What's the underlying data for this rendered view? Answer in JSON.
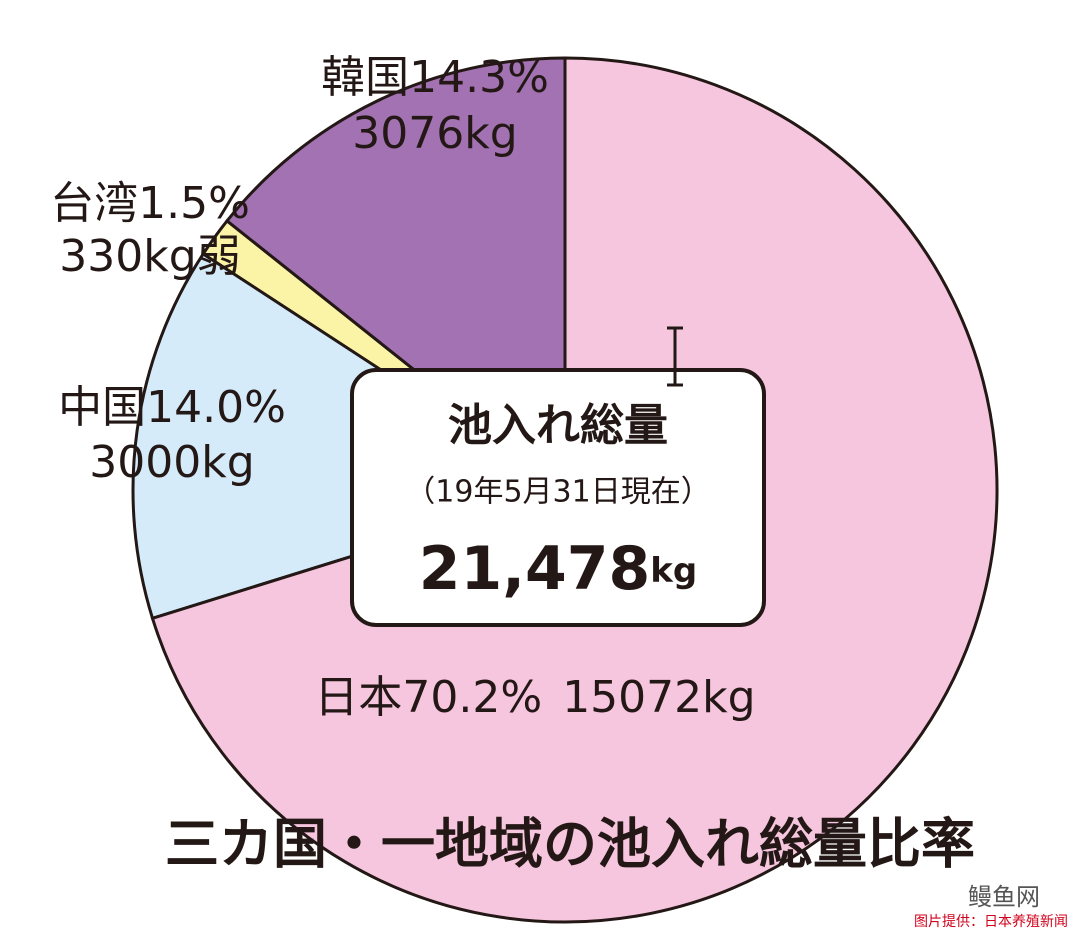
{
  "chart_data": {
    "type": "pie",
    "title": "三カ国・一地域の池入れ総量比率",
    "categories": [
      "韓国",
      "台湾",
      "中国",
      "日本"
    ],
    "values": [
      14.3,
      1.5,
      14.0,
      70.2
    ],
    "value_labels": [
      "14.3%",
      "1.5%",
      "14.0%",
      "70.2%"
    ],
    "weight_labels": [
      "3076kg",
      "330kg弱",
      "3000kg",
      "15072kg"
    ],
    "colors": [
      "#a372b3",
      "#fbf4a6",
      "#d5ebfa",
      "#f6c5de"
    ],
    "center": {
      "title": "池入れ総量",
      "date": "（19年5月31日現在）",
      "total": "21,478",
      "unit": "kg"
    }
  },
  "watermark": {
    "brand": "鳗鱼网",
    "credit": "图片提供：日本养殖新闻"
  }
}
